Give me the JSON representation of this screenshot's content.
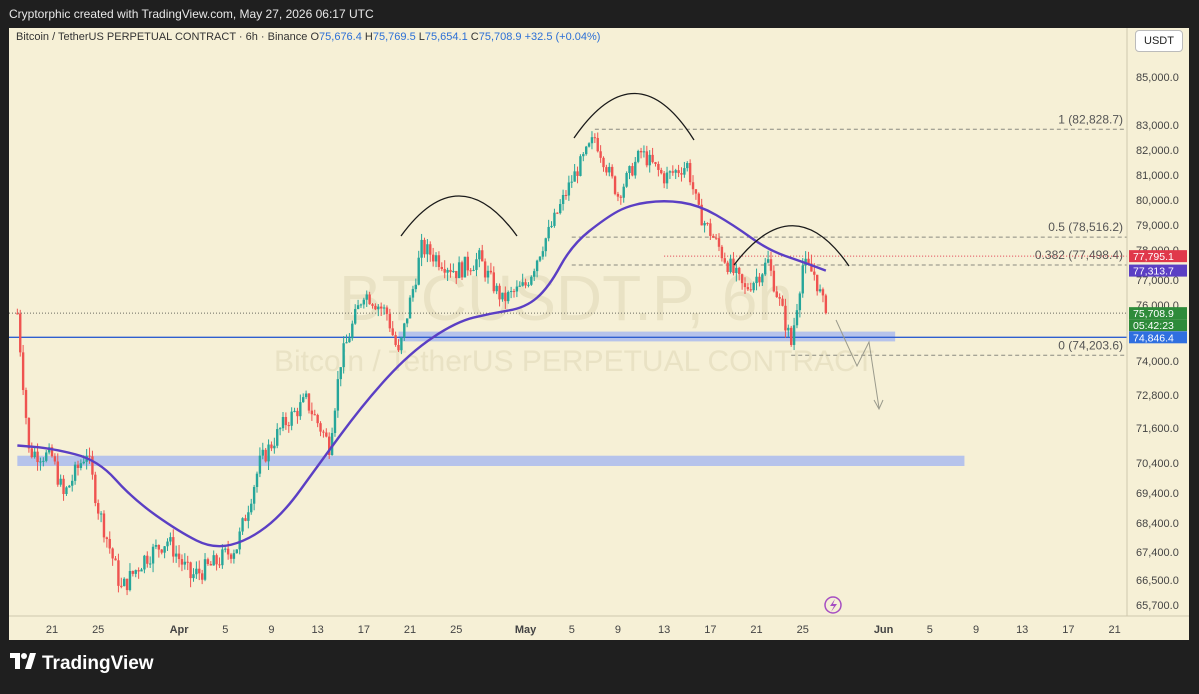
{
  "app": {
    "credit": "Cryptorphic created with TradingView.com, May 27, 2026 06:17 UTC",
    "logo_text": "TradingView",
    "currency_button": "USDT"
  },
  "header": {
    "symbol": "Bitcoin / TetherUS PERPETUAL CONTRACT · 6h · Binance",
    "o_label": "O",
    "o_value": "75,676.4",
    "h_label": "H",
    "h_value": "75,769.5",
    "l_label": "L",
    "l_value": "75,654.1",
    "c_label": "C",
    "c_value": "75,708.9",
    "change": "+32.5 (+0.04%)"
  },
  "watermark": {
    "ticker": "BTCUSDT.P, 6h",
    "name": "Bitcoin / TetherUS PERPETUAL CONTRACT"
  },
  "chart_data": {
    "type": "candlestick",
    "timeframe": "6h",
    "ylim": [
      65300,
      86000
    ],
    "y_ticks": [
      "85,000.0",
      "83,000.0",
      "82,000.0",
      "81,000.0",
      "80,000.0",
      "79,000.0",
      "78,000.0",
      "77,000.0",
      "76,000.0",
      "74,000.0",
      "72,800.0",
      "71,600.0",
      "70,400.0",
      "69,400.0",
      "68,400.0",
      "67,400.0",
      "66,500.0",
      "65,700.0"
    ],
    "y_tick_values": [
      85000,
      83000,
      82000,
      81000,
      80000,
      79000,
      78000,
      77000,
      76000,
      74000,
      72800,
      71600,
      70400,
      69400,
      68400,
      67400,
      66500,
      65700
    ],
    "x_ticks": [
      "21",
      "25",
      "Apr",
      "5",
      "9",
      "13",
      "17",
      "21",
      "25",
      "May",
      "5",
      "9",
      "13",
      "17",
      "21",
      "25",
      "Jun",
      "5",
      "9",
      "13",
      "17",
      "21"
    ],
    "close_path": [
      [
        "Mar 18",
        75700
      ],
      [
        "Mar 19",
        70800
      ],
      [
        "Mar 21",
        70600
      ],
      [
        "Mar 22",
        69300
      ],
      [
        "Mar 24",
        70800
      ],
      [
        "Mar 25",
        68900
      ],
      [
        "Mar 27",
        66200
      ],
      [
        "Mar 29",
        67200
      ],
      [
        "Mar 31",
        67800
      ],
      [
        "Apr 2",
        66600
      ],
      [
        "Apr 4",
        67000
      ],
      [
        "Apr 6",
        67600
      ],
      [
        "Apr 8",
        70400
      ],
      [
        "Apr 10",
        71700
      ],
      [
        "Apr 12",
        72600
      ],
      [
        "Apr 14",
        71000
      ],
      [
        "Apr 15",
        74000
      ],
      [
        "Apr 17",
        76500
      ],
      [
        "Apr 19",
        75700
      ],
      [
        "Apr 20",
        74200
      ],
      [
        "Apr 22",
        78100
      ],
      [
        "Apr 25",
        77300
      ],
      [
        "Apr 27",
        77700
      ],
      [
        "Apr 29",
        76200
      ],
      [
        "May 1",
        76800
      ],
      [
        "May 3",
        78700
      ],
      [
        "May 5",
        80800
      ],
      [
        "May 7",
        82500
      ],
      [
        "May 9",
        80200
      ],
      [
        "May 11",
        81900
      ],
      [
        "May 13",
        80900
      ],
      [
        "May 15",
        81400
      ],
      [
        "May 16",
        79500
      ],
      [
        "May 18",
        77900
      ],
      [
        "May 20",
        76600
      ],
      [
        "May 22",
        77600
      ],
      [
        "May 24",
        74600
      ],
      [
        "May 25",
        77500
      ],
      [
        "May 26",
        77200
      ],
      [
        "May 27",
        75708.9
      ]
    ],
    "ema": [
      [
        "Mar 18",
        71000
      ],
      [
        "Mar 21",
        70900
      ],
      [
        "Mar 25",
        70500
      ],
      [
        "Mar 28",
        69200
      ],
      [
        "Apr 1",
        68100
      ],
      [
        "Apr 4",
        67500
      ],
      [
        "Apr 7",
        67800
      ],
      [
        "Apr 10",
        68700
      ],
      [
        "Apr 13",
        70300
      ],
      [
        "Apr 17",
        72500
      ],
      [
        "Apr 21",
        74300
      ],
      [
        "Apr 25",
        75400
      ],
      [
        "Apr 28",
        75700
      ],
      [
        "May 1",
        75900
      ],
      [
        "May 3",
        76700
      ],
      [
        "May 5",
        78200
      ],
      [
        "May 8",
        79300
      ],
      [
        "May 10",
        79800
      ],
      [
        "May 13",
        80000
      ],
      [
        "May 16",
        79800
      ],
      [
        "May 19",
        79000
      ],
      [
        "May 22",
        78000
      ],
      [
        "May 25",
        77600
      ],
      [
        "May 27",
        77313.7
      ]
    ],
    "fibonacci": [
      {
        "label": "1 (82,828.7)",
        "level": 82828.7
      },
      {
        "label": "0.5 (78,516.2)",
        "level": 78516.2
      },
      {
        "label": "0.382 (77,498.4)",
        "level": 77498.4
      },
      {
        "label": "0 (74,203.6)",
        "level": 74203.6
      }
    ],
    "price_tags": [
      {
        "text": "77,795.1",
        "value": 77795.1,
        "color": "#e0384b"
      },
      {
        "text": "77,313.7",
        "value": 77313.7,
        "color": "#5b3fc4"
      },
      {
        "text": "75,708.9",
        "value": 75708.9,
        "color": "#2e8b3a"
      },
      {
        "text": "05:42:23",
        "value": 75708.9,
        "color": "#2e8b3a"
      },
      {
        "text": "74,846.4",
        "value": 74846.4,
        "color": "#2f6fe0"
      }
    ],
    "support_zones": [
      {
        "from": 74700,
        "to": 75050,
        "start": "Apr 20",
        "end": "Jun 2"
      },
      {
        "from": 70300,
        "to": 70650,
        "start": "Mar 18",
        "end": "Jun 8"
      }
    ],
    "horizontal_line": 74846.4,
    "colors": {
      "up": "#26a69a",
      "down": "#ef5350",
      "ema": "#5b3fc4",
      "zone": "#a6b8f0",
      "hline": "#2f5fd0",
      "background": "#f6f0d6"
    }
  }
}
